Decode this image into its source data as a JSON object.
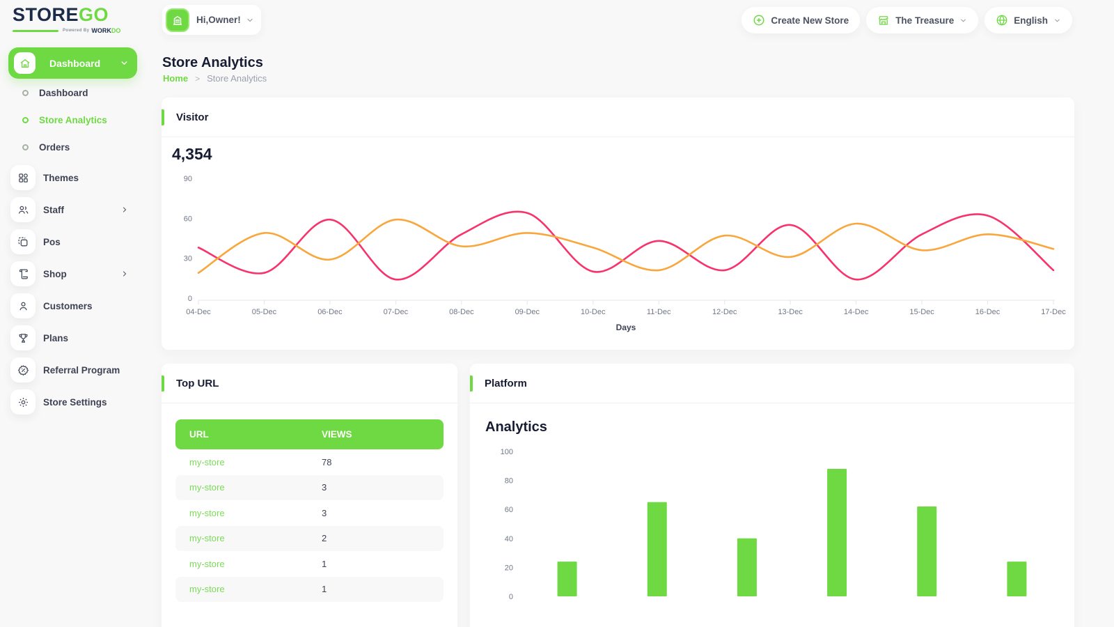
{
  "brand": {
    "word_primary": "STORE",
    "word_accent": "GO",
    "powered_prefix": "Powered By",
    "powered_word": "WORK",
    "powered_word_accent": "DO"
  },
  "colors": {
    "accent_green": "#6fd943",
    "line_pink": "#f8336c",
    "line_orange": "#f9a63c",
    "bar_green": "#6fd943",
    "dark_text": "#181c32"
  },
  "topbar": {
    "greeting": "Hi,Owner!",
    "create_store_label": "Create New Store",
    "store_selector_label": "The Treasure",
    "language_label": "English"
  },
  "sidebar": {
    "group_label": "Dashboard",
    "subitems": [
      {
        "label": "Dashboard",
        "active": false
      },
      {
        "label": "Store Analytics",
        "active": true
      },
      {
        "label": "Orders",
        "active": false
      }
    ],
    "items": [
      {
        "label": "Themes",
        "icon": "grid-icon",
        "chevron": false
      },
      {
        "label": "Staff",
        "icon": "users-icon",
        "chevron": true
      },
      {
        "label": "Pos",
        "icon": "pos-icon",
        "chevron": false
      },
      {
        "label": "Shop",
        "icon": "scroll-icon",
        "chevron": true
      },
      {
        "label": "Customers",
        "icon": "user-icon",
        "chevron": false
      },
      {
        "label": "Plans",
        "icon": "trophy-icon",
        "chevron": false
      },
      {
        "label": "Referral Program",
        "icon": "badge-percent-icon",
        "chevron": false
      },
      {
        "label": "Store Settings",
        "icon": "gear-icon",
        "chevron": false
      }
    ]
  },
  "page": {
    "title": "Store Analytics",
    "breadcrumb": [
      "Home",
      "Store Analytics"
    ]
  },
  "visitor_card": {
    "title": "Visitor",
    "total": "4,354"
  },
  "top_url_card": {
    "title": "Top URL",
    "columns": [
      "URL",
      "VIEWS"
    ],
    "rows": [
      {
        "url": "my-store",
        "views": "78"
      },
      {
        "url": "my-store",
        "views": "3"
      },
      {
        "url": "my-store",
        "views": "3"
      },
      {
        "url": "my-store",
        "views": "2"
      },
      {
        "url": "my-store",
        "views": "1"
      },
      {
        "url": "my-store",
        "views": "1"
      }
    ]
  },
  "platform_card": {
    "title": "Platform",
    "subtitle": "Analytics"
  },
  "chart_data": [
    {
      "id": "visitor-line",
      "type": "line",
      "title": "Visitor",
      "x": [
        "04-Dec",
        "05-Dec",
        "06-Dec",
        "07-Dec",
        "08-Dec",
        "09-Dec",
        "10-Dec",
        "11-Dec",
        "12-Dec",
        "13-Dec",
        "14-Dec",
        "15-Dec",
        "16-Dec",
        "17-Dec"
      ],
      "series": [
        {
          "name": "series-pink",
          "color": "#f8336c",
          "values": [
            38,
            19,
            59,
            14,
            48,
            64,
            20,
            43,
            21,
            55,
            14,
            48,
            62,
            21
          ]
        },
        {
          "name": "series-orange",
          "color": "#f9a63c",
          "values": [
            19,
            49,
            29,
            59,
            39,
            49,
            38,
            21,
            47,
            31,
            56,
            36,
            48,
            37
          ]
        }
      ],
      "xlabel": "Days",
      "ylabel": "",
      "ylim": [
        0,
        90
      ],
      "yticks": [
        0,
        30,
        60,
        90
      ],
      "grid": false,
      "legend": "none"
    },
    {
      "id": "platform-bar",
      "type": "bar",
      "title": "Analytics",
      "categories": [
        "",
        "",
        "",
        "",
        "",
        ""
      ],
      "values": [
        24,
        65,
        40,
        88,
        62,
        24
      ],
      "color": "#6fd943",
      "xlabel": "",
      "ylabel": "",
      "ylim": [
        0,
        100
      ],
      "yticks": [
        0,
        20,
        40,
        60,
        80,
        100
      ],
      "grid": false
    }
  ]
}
